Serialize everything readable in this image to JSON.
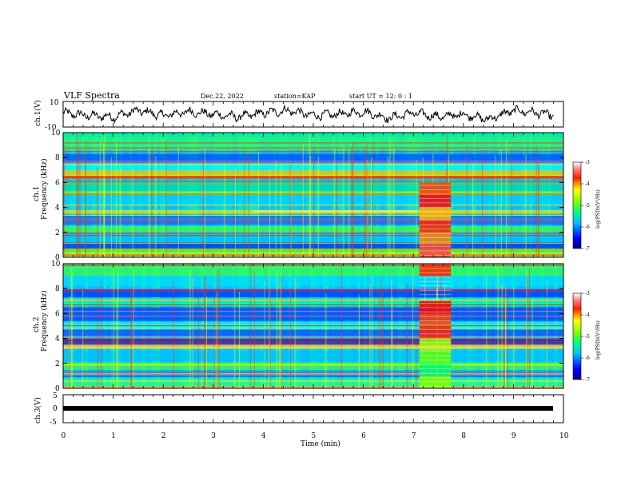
{
  "header": {
    "title": "VLF Spectra",
    "date": "Dec.22, 2022",
    "station": "station=KAP",
    "start_ut": "start  UT =  12: 0  : 1"
  },
  "chart_data": [
    {
      "type": "line",
      "id": "ch1-waveform",
      "ylabel": "ch.1(V)",
      "ylim": [
        -10,
        10
      ],
      "yticks": [
        "10",
        "-10"
      ],
      "xlim": [
        0,
        10
      ],
      "series": [
        {
          "x": [
            0,
            0.5,
            1,
            1.5,
            2,
            2.5,
            3,
            3.5,
            4,
            4.5,
            5,
            5.5,
            6,
            6.5,
            7,
            7.5,
            8,
            8.5,
            9,
            9.5,
            9.8
          ],
          "values": [
            1,
            -1,
            -2,
            3,
            -1,
            2,
            0,
            -2,
            1,
            3,
            -1,
            0,
            2,
            -3,
            1,
            -2,
            0,
            -4,
            3,
            1,
            -1
          ]
        }
      ]
    },
    {
      "type": "heatmap",
      "id": "ch1-spectrogram",
      "ylabel": "ch.1",
      "ylabel2": "Frequency  (kHz)",
      "ylim": [
        0,
        10
      ],
      "yticks": [
        "0",
        "2",
        "4",
        "6",
        "8",
        "10"
      ],
      "xlim": [
        0,
        10
      ],
      "colorbar": {
        "label": "log(PSD)(V²/Hz)",
        "ticks": [
          "-3",
          "-4",
          "-5",
          "-6",
          "-7"
        ],
        "range": [
          -7,
          -3
        ]
      }
    },
    {
      "type": "heatmap",
      "id": "ch2-spectrogram",
      "ylabel": "ch.2",
      "ylabel2": "Frequency  (kHz)",
      "ylim": [
        0,
        10
      ],
      "yticks": [
        "0",
        "2",
        "4",
        "6",
        "8",
        "10"
      ],
      "xlim": [
        0,
        10
      ],
      "colorbar": {
        "label": "log(PSD)(V²/Hz)",
        "ticks": [
          "-3",
          "-4",
          "-5",
          "-6",
          "-7"
        ],
        "range": [
          -7,
          -3
        ]
      }
    },
    {
      "type": "line",
      "id": "ch3-waveform",
      "ylabel": "ch.3(V)",
      "ylim": [
        -5,
        5
      ],
      "yticks": [
        "5",
        "0",
        "-5"
      ],
      "xlim": [
        0,
        10
      ],
      "series": [
        {
          "x": [
            0,
            9.8
          ],
          "values": [
            -0.7,
            -0.7
          ]
        }
      ]
    }
  ],
  "xaxis": {
    "label": "Time  (min)",
    "ticks": [
      "0",
      "1",
      "2",
      "3",
      "4",
      "5",
      "6",
      "7",
      "8",
      "9",
      "10"
    ]
  }
}
